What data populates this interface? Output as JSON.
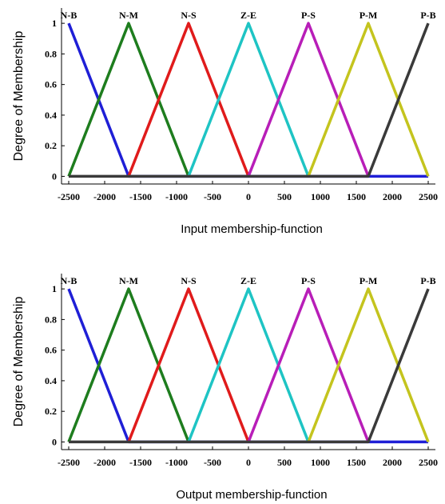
{
  "chart_data": [
    {
      "type": "line",
      "title": "",
      "xlabel": "Input membership-function",
      "ylabel": "Degree of  Membership",
      "xlim": [
        -2600,
        2600
      ],
      "ylim": [
        -0.05,
        1.1
      ],
      "xticks": [
        -2500,
        -2000,
        -1500,
        -1000,
        -500,
        0,
        500,
        1000,
        1500,
        2000,
        2500
      ],
      "yticks": [
        0,
        0.2,
        0.4,
        0.6,
        0.8,
        1
      ],
      "grid": false,
      "legend": "none",
      "series": [
        {
          "name": "N-B",
          "color": "#1f1fd6",
          "x": [
            -2500,
            -1667,
            2500
          ],
          "y": [
            1,
            0,
            0
          ]
        },
        {
          "name": "N-M",
          "color": "#1e7d1e",
          "x": [
            -2500,
            -1667,
            -833
          ],
          "y": [
            0,
            1,
            0
          ]
        },
        {
          "name": "N-S",
          "color": "#e01b1b",
          "x": [
            -1667,
            -833,
            0
          ],
          "y": [
            0,
            1,
            0
          ]
        },
        {
          "name": "Z-E",
          "color": "#1ec4c4",
          "x": [
            -833,
            0,
            833
          ],
          "y": [
            0,
            1,
            0
          ]
        },
        {
          "name": "P-S",
          "color": "#b81eb8",
          "x": [
            0,
            833,
            1667
          ],
          "y": [
            0,
            1,
            0
          ]
        },
        {
          "name": "P-M",
          "color": "#c4c41e",
          "x": [
            833,
            1667,
            2500
          ],
          "y": [
            0,
            1,
            0
          ]
        },
        {
          "name": "P-B",
          "color": "#3a3a3a",
          "x": [
            -2500,
            1667,
            2500
          ],
          "y": [
            0,
            0,
            1
          ]
        }
      ]
    },
    {
      "type": "line",
      "title": "",
      "xlabel": "Output membership-function",
      "ylabel": "Degree of  Membership",
      "xlim": [
        -2600,
        2600
      ],
      "ylim": [
        -0.05,
        1.1
      ],
      "xticks": [
        -2500,
        -2000,
        -1500,
        -1000,
        -500,
        0,
        500,
        1000,
        1500,
        2000,
        2500
      ],
      "yticks": [
        0,
        0.2,
        0.4,
        0.6,
        0.8,
        1
      ],
      "grid": false,
      "legend": "none",
      "series": [
        {
          "name": "N-B",
          "color": "#1f1fd6",
          "x": [
            -2500,
            -1667,
            2500
          ],
          "y": [
            1,
            0,
            0
          ]
        },
        {
          "name": "N-M",
          "color": "#1e7d1e",
          "x": [
            -2500,
            -1667,
            -833
          ],
          "y": [
            0,
            1,
            0
          ]
        },
        {
          "name": "N-S",
          "color": "#e01b1b",
          "x": [
            -1667,
            -833,
            0
          ],
          "y": [
            0,
            1,
            0
          ]
        },
        {
          "name": "Z-E",
          "color": "#1ec4c4",
          "x": [
            -833,
            0,
            833
          ],
          "y": [
            0,
            1,
            0
          ]
        },
        {
          "name": "P-S",
          "color": "#b81eb8",
          "x": [
            0,
            833,
            1667
          ],
          "y": [
            0,
            1,
            0
          ]
        },
        {
          "name": "P-M",
          "color": "#c4c41e",
          "x": [
            833,
            1667,
            2500
          ],
          "y": [
            0,
            1,
            0
          ]
        },
        {
          "name": "P-B",
          "color": "#3a3a3a",
          "x": [
            -2500,
            1667,
            2500
          ],
          "y": [
            0,
            0,
            1
          ]
        }
      ]
    }
  ]
}
